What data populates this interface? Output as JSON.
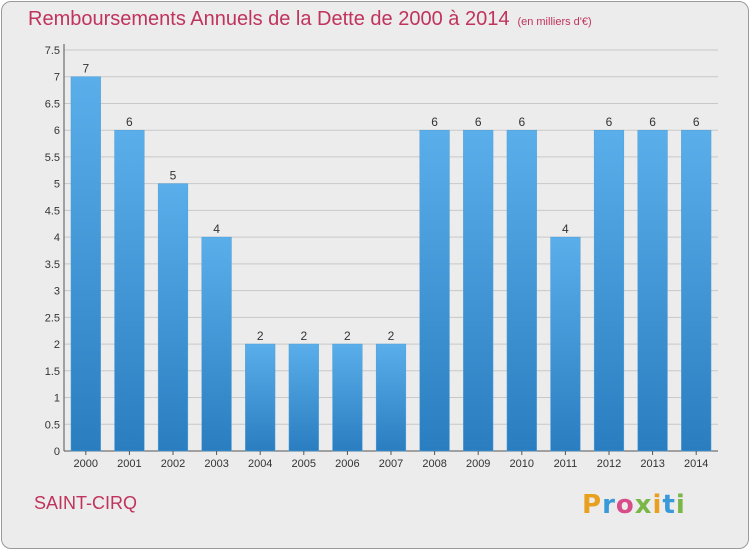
{
  "title": "Remboursements Annuels de la Dette de 2000 à 2014",
  "title_unit": "(en milliers d'€)",
  "place_name": "SAINT-CIRQ",
  "logo_text": "Proxiti",
  "colors": {
    "title": "#c0335c",
    "bar_light": "#5aaeea",
    "bar_dark": "#2a7ec0",
    "grid": "#c8c8c8",
    "background": "#ececec"
  },
  "chart_data": {
    "type": "bar",
    "categories": [
      "2000",
      "2001",
      "2002",
      "2003",
      "2004",
      "2005",
      "2006",
      "2007",
      "2008",
      "2009",
      "2010",
      "2011",
      "2012",
      "2013",
      "2014"
    ],
    "values": [
      7,
      6,
      5,
      4,
      2,
      2,
      2,
      2,
      6,
      6,
      6,
      4,
      6,
      6,
      6
    ],
    "value_labels": [
      "7",
      "6",
      "5",
      "4",
      "2",
      "2",
      "2",
      "2",
      "6",
      "6",
      "6",
      "4",
      "6",
      "6",
      "6"
    ],
    "y_ticks": [
      "0",
      "0.5",
      "1",
      "1.5",
      "2",
      "2.5",
      "3",
      "3.5",
      "4",
      "4.5",
      "5",
      "5.5",
      "6",
      "6.5",
      "7",
      "7.5"
    ],
    "ylim": [
      0,
      7.5
    ],
    "grid": true,
    "legend": "none"
  }
}
